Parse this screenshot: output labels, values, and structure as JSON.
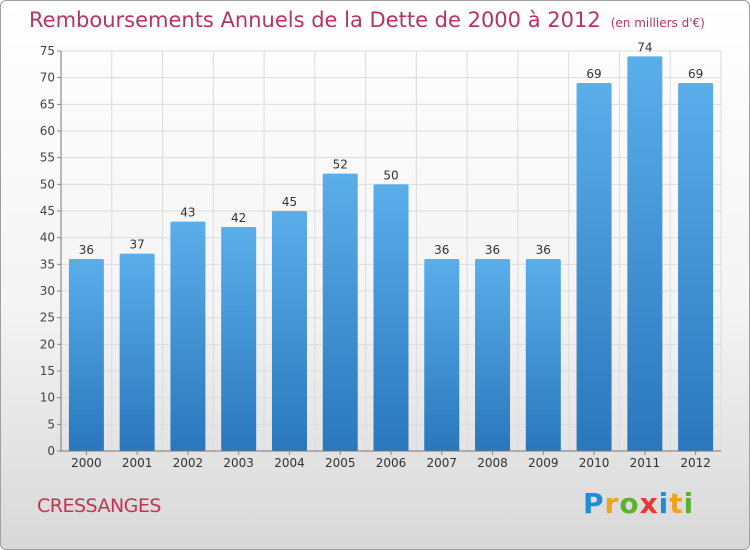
{
  "header": {
    "title": "Remboursements Annuels de la Dette de 2000 à 2012",
    "unit": "(en milliers d'€)"
  },
  "footer": {
    "commune": "CRESSANGES",
    "logo_letters": [
      "P",
      "r",
      "o",
      "x",
      "i",
      "t",
      "i"
    ]
  },
  "colors": {
    "title": "#b8335f",
    "bar_top": "#5aaeea",
    "bar_bottom": "#2a77bd",
    "grid": "#dcdcdc"
  },
  "chart_data": {
    "type": "bar",
    "categories": [
      "2000",
      "2001",
      "2002",
      "2003",
      "2004",
      "2005",
      "2006",
      "2007",
      "2008",
      "2009",
      "2010",
      "2011",
      "2012"
    ],
    "values": [
      36,
      37,
      43,
      42,
      45,
      52,
      50,
      36,
      36,
      36,
      69,
      74,
      69
    ],
    "ylim": [
      0,
      75
    ],
    "yticks": [
      0,
      5,
      10,
      15,
      20,
      25,
      30,
      35,
      40,
      45,
      50,
      55,
      60,
      65,
      70,
      75
    ],
    "grid": true,
    "data_labels": true
  }
}
